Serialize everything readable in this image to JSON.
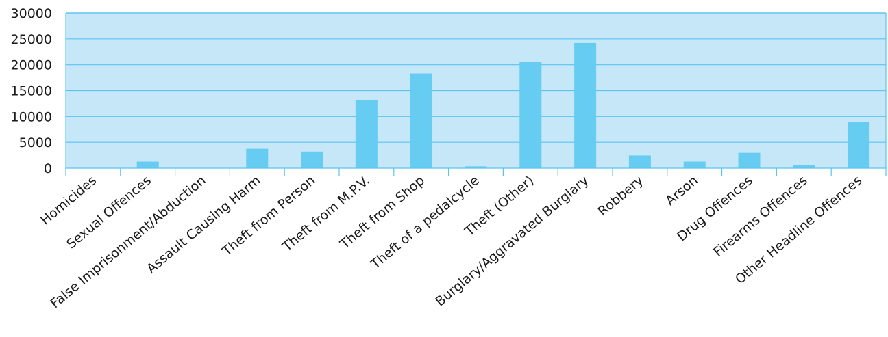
{
  "chart_data": {
    "type": "bar",
    "categories": [
      "Homicides",
      "Sexual Offences",
      "False Imprisonment/Abduction",
      "Assault Causing Harm",
      "Theft from Person",
      "Theft from M.P.V.",
      "Theft from Shop",
      "Theft of a pedalcycle",
      "Theft (Other)",
      "Burglary/Aggravated Burglary",
      "Robbery",
      "Arson",
      "Drug Offences",
      "Firearms Offences",
      "Other Headline Offences"
    ],
    "values": [
      30,
      1250,
      50,
      3750,
      3200,
      13200,
      18300,
      350,
      20500,
      24200,
      2450,
      1250,
      2950,
      650,
      8900
    ],
    "title": "",
    "xlabel": "",
    "ylabel": "",
    "ylim": [
      0,
      30000
    ],
    "yticks": [
      "0",
      "5000",
      "10000",
      "15000",
      "20000",
      "25000",
      "30000"
    ],
    "grid": true,
    "legend": "none",
    "colors": {
      "bar": "#66ccf2",
      "plot_background": "#c6e7f8",
      "grid": "#5bc4f0",
      "axis": "#5bc4f0"
    }
  }
}
